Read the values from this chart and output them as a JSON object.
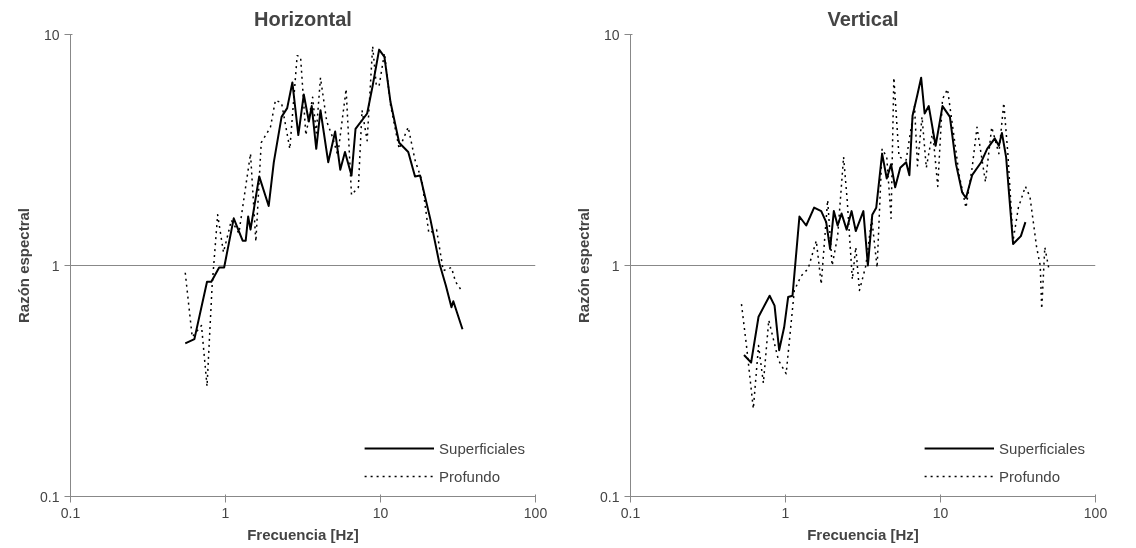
{
  "chart_data": [
    {
      "type": "line",
      "title": "Horizontal",
      "xlabel": "Frecuencia [Hz]",
      "ylabel": "Razón espectral",
      "log": "xy",
      "grid": "y",
      "legend": "bottom right",
      "xlim": [
        0.1,
        100
      ],
      "ylim": [
        0.1,
        10
      ],
      "xticks": [
        0.1,
        1,
        10,
        100
      ],
      "yticks": [
        0.1,
        1,
        10
      ],
      "series": [
        {
          "name": "Superficiales",
          "color": "#000000",
          "line_style": "solid",
          "x": [
            0.55,
            0.63,
            0.76,
            0.81,
            0.91,
            0.98,
            1.13,
            1.29,
            1.35,
            1.4,
            1.45,
            1.65,
            1.9,
            2.05,
            2.3,
            2.5,
            2.7,
            2.95,
            3.2,
            3.45,
            3.6,
            3.85,
            4.1,
            4.6,
            5.1,
            5.5,
            5.9,
            6.5,
            6.9,
            8.2,
            8.9,
            9.8,
            10.6,
            11.6,
            13.2,
            15.1,
            16.7,
            18,
            21,
            24,
            26.4,
            28.7,
            29.5,
            33.8
          ],
          "values": [
            0.46,
            0.48,
            0.85,
            0.85,
            0.98,
            0.98,
            1.6,
            1.28,
            1.28,
            1.63,
            1.43,
            2.43,
            1.81,
            2.8,
            4.4,
            4.8,
            6.2,
            3.67,
            5.5,
            4.2,
            4.9,
            3.2,
            4.7,
            2.8,
            3.8,
            2.6,
            3.1,
            2.45,
            3.9,
            4.55,
            6.0,
            8.6,
            8.0,
            5.1,
            3.4,
            3.1,
            2.43,
            2.45,
            1.58,
            1.02,
            0.82,
            0.66,
            0.7,
            0.53
          ]
        },
        {
          "name": "Profundo",
          "color": "#000000",
          "line_style": "dotted",
          "x": [
            0.55,
            0.61,
            0.7,
            0.76,
            0.82,
            0.89,
            0.97,
            1.05,
            1.09,
            1.22,
            1.45,
            1.57,
            1.7,
            1.95,
            2.1,
            2.3,
            2.6,
            2.9,
            3.05,
            3.3,
            3.65,
            3.85,
            4.1,
            4.5,
            4.9,
            5.3,
            6.0,
            6.5,
            7.2,
            7.6,
            8.2,
            8.9,
            9.4,
            9.8,
            10.6,
            11.6,
            13.2,
            15.1,
            16.7,
            18.5,
            20.5,
            23,
            25.4,
            28.7,
            30.5,
            33.3
          ],
          "values": [
            0.93,
            0.49,
            0.55,
            0.3,
            0.82,
            1.66,
            1.14,
            1.41,
            1.57,
            1.38,
            3.05,
            1.27,
            3.4,
            3.97,
            5.2,
            5.05,
            3.2,
            8.1,
            8.0,
            3.67,
            5.35,
            3.75,
            6.5,
            4.2,
            3.6,
            3.0,
            5.8,
            2.02,
            2.18,
            4.7,
            3.47,
            8.9,
            6.0,
            6.0,
            8.3,
            4.97,
            3.2,
            3.97,
            2.86,
            2.33,
            1.38,
            1.43,
            0.95,
            0.98,
            0.85,
            0.78
          ]
        }
      ]
    },
    {
      "type": "line",
      "title": "Vertical",
      "xlabel": "Frecuencia [Hz]",
      "ylabel": "Razón espectral",
      "log": "xy",
      "grid": "y",
      "legend": "bottom right",
      "xlim": [
        0.1,
        100
      ],
      "ylim": [
        0.1,
        10
      ],
      "xticks": [
        0.1,
        1,
        10,
        100
      ],
      "yticks": [
        0.1,
        1,
        10
      ],
      "series": [
        {
          "name": "Superficiales",
          "color": "#000000",
          "line_style": "solid",
          "x": [
            0.54,
            0.6,
            0.67,
            0.79,
            0.85,
            0.91,
            0.98,
            1.04,
            1.11,
            1.23,
            1.36,
            1.53,
            1.7,
            1.83,
            1.94,
            2.05,
            2.17,
            2.3,
            2.48,
            2.67,
            2.84,
            3.18,
            3.4,
            3.63,
            3.85,
            4.2,
            4.5,
            4.8,
            5.1,
            5.5,
            6.0,
            6.3,
            6.6,
            7.1,
            7.5,
            7.9,
            8.4,
            9.3,
            10.3,
            11.5,
            12.6,
            13.8,
            14.6,
            16.0,
            18.3,
            20.0,
            22.4,
            23.8,
            24.9,
            26.5,
            29.4,
            33.0,
            35.3
          ],
          "values": [
            0.41,
            0.38,
            0.6,
            0.74,
            0.67,
            0.43,
            0.54,
            0.73,
            0.74,
            1.63,
            1.49,
            1.78,
            1.72,
            1.54,
            1.18,
            1.72,
            1.49,
            1.68,
            1.43,
            1.72,
            1.41,
            1.72,
            1.0,
            1.66,
            1.78,
            3.05,
            2.38,
            2.74,
            2.18,
            2.65,
            2.8,
            2.46,
            4.45,
            5.5,
            6.5,
            4.55,
            4.9,
            3.3,
            4.9,
            4.4,
            2.74,
            2.07,
            1.96,
            2.46,
            2.8,
            3.2,
            3.55,
            3.3,
            3.75,
            2.95,
            1.24,
            1.34,
            1.54
          ]
        },
        {
          "name": "Profundo",
          "color": "#000000",
          "line_style": "dotted",
          "x": [
            0.52,
            0.56,
            0.62,
            0.67,
            0.72,
            0.78,
            0.9,
            1.01,
            1.14,
            1.26,
            1.4,
            1.58,
            1.7,
            1.87,
            2.0,
            2.17,
            2.37,
            2.5,
            2.7,
            2.84,
            3.0,
            3.3,
            3.6,
            3.9,
            4.2,
            4.5,
            4.8,
            5.0,
            5.4,
            6.0,
            6.8,
            7.1,
            7.6,
            8.1,
            8.9,
            9.6,
            10.3,
            11.1,
            12.1,
            13.2,
            14.6,
            16.0,
            17.2,
            19.5,
            21.4,
            23.8,
            25.6,
            27.2,
            29.4,
            31.8,
            35.3,
            37.8,
            41.7,
            44.0,
            45.0,
            47.1,
            50.0
          ],
          "values": [
            0.68,
            0.45,
            0.24,
            0.45,
            0.31,
            0.58,
            0.39,
            0.34,
            0.78,
            0.9,
            0.97,
            1.28,
            0.83,
            1.92,
            1.0,
            1.34,
            2.95,
            1.92,
            0.87,
            1.2,
            0.78,
            1.0,
            1.6,
            0.98,
            3.2,
            2.95,
            1.6,
            6.5,
            2.95,
            2.86,
            4.9,
            2.7,
            4.4,
            2.65,
            3.8,
            2.2,
            5.25,
            5.8,
            3.8,
            2.46,
            1.78,
            2.65,
            3.97,
            2.3,
            3.97,
            3.05,
            5.05,
            3.05,
            1.28,
            1.78,
            2.2,
            1.98,
            1.2,
            1.0,
            0.65,
            1.2,
            0.97
          ]
        }
      ]
    }
  ]
}
